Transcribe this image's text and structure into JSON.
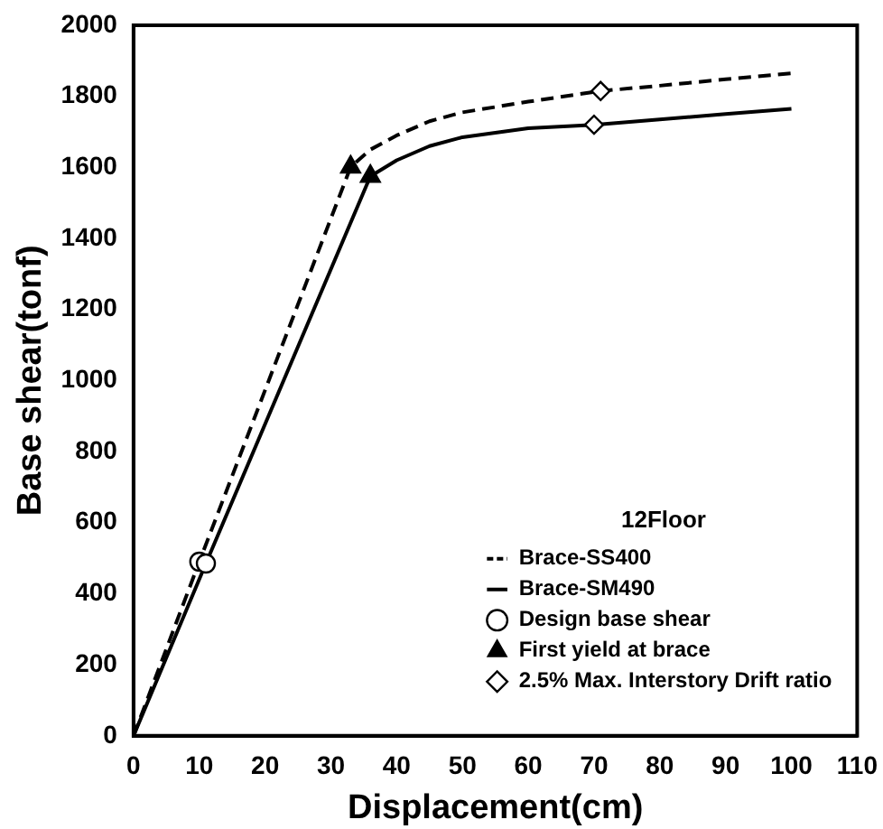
{
  "chart_data": {
    "type": "line",
    "xlabel": "Displacement(cm)",
    "ylabel": "Base shear(tonf)",
    "legend_title": "12Floor",
    "legend": "bottom right",
    "grid": false,
    "xlim": [
      0,
      110
    ],
    "xticks": [
      0,
      10,
      20,
      30,
      40,
      50,
      60,
      70,
      80,
      90,
      100,
      110
    ],
    "ylim": [
      0,
      2000
    ],
    "yticks": [
      0,
      200,
      400,
      600,
      800,
      1000,
      1200,
      1400,
      1600,
      1800,
      2000
    ],
    "series": [
      {
        "name": "Brace-SS400",
        "color": "#000000",
        "line_style": "dashed",
        "marker": "none",
        "x": [
          0,
          10,
          33,
          36,
          40,
          45,
          50,
          60,
          71,
          80,
          90,
          100
        ],
        "values": [
          0,
          490,
          1601,
          1650,
          1690,
          1730,
          1755,
          1785,
          1815,
          1830,
          1848,
          1865
        ]
      },
      {
        "name": "Brace-SM490",
        "color": "#000000",
        "line_style": "solid",
        "marker": "none",
        "x": [
          0,
          11,
          36,
          40,
          45,
          50,
          60,
          70,
          80,
          90,
          100
        ],
        "values": [
          0,
          485,
          1575,
          1620,
          1660,
          1685,
          1710,
          1720,
          1735,
          1750,
          1765
        ]
      },
      {
        "name": "Design base shear",
        "type": "scatter",
        "color": "#000000",
        "marker": "circle",
        "x": [
          10,
          11
        ],
        "values": [
          490,
          485
        ]
      },
      {
        "name": "First yield at brace",
        "type": "scatter",
        "color": "#000000",
        "marker": "triangle",
        "x": [
          33,
          36
        ],
        "values": [
          1601,
          1575
        ]
      },
      {
        "name": "2.5% Max. Interstory Drift ratio",
        "type": "scatter",
        "color": "#000000",
        "marker": "diamond",
        "x": [
          71,
          70
        ],
        "values": [
          1815,
          1720
        ]
      }
    ]
  }
}
